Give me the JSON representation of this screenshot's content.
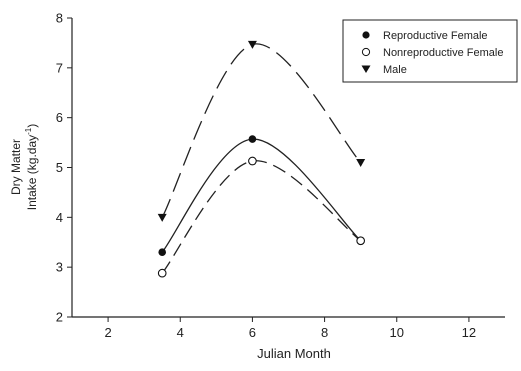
{
  "chart_data": {
    "type": "line",
    "xlabel": "Julian Month",
    "ylabel_line1": "Dry Matter",
    "ylabel_line2": "Intake (kg.day",
    "ylabel_sup": "-1",
    "ylabel_close": ")",
    "xlim": [
      1,
      13
    ],
    "ylim": [
      2,
      8
    ],
    "x_ticks": [
      2,
      4,
      6,
      8,
      10,
      12
    ],
    "y_ticks": [
      2,
      3,
      4,
      5,
      6,
      7,
      8
    ],
    "legend_position": "top-right",
    "series": [
      {
        "name": "Reproductive Female",
        "marker": "filled-circle",
        "line": "solid",
        "x": [
          3.5,
          6,
          9
        ],
        "y": [
          3.3,
          5.57,
          3.53
        ]
      },
      {
        "name": "Nonreproductive Female",
        "marker": "open-circle",
        "line": "dashed",
        "x": [
          3.5,
          6,
          9
        ],
        "y": [
          2.88,
          5.13,
          3.53
        ]
      },
      {
        "name": "Male",
        "marker": "triangle-down",
        "line": "long-dashed",
        "x": [
          3.5,
          6,
          9
        ],
        "y": [
          4.0,
          7.47,
          5.1
        ]
      }
    ]
  }
}
